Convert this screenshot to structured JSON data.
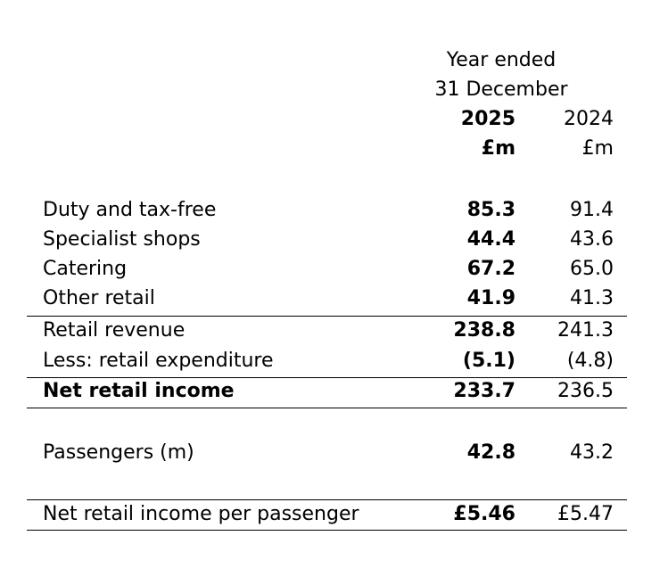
{
  "header": {
    "line1": "Year ended",
    "line2": "31 December",
    "year_current": "2025",
    "year_prior": "2024",
    "unit_current": "£m",
    "unit_prior": "£m"
  },
  "rows": [
    {
      "label": "Duty and tax-free",
      "current": "85.3",
      "prior": "91.4"
    },
    {
      "label": "Specialist shops",
      "current": "44.4",
      "prior": "43.6"
    },
    {
      "label": "Catering",
      "current": "67.2",
      "prior": "65.0"
    },
    {
      "label": "Other retail",
      "current": "41.9",
      "prior": "41.3"
    },
    {
      "label": "Retail revenue",
      "current": "238.8",
      "prior": "241.3"
    },
    {
      "label": "Less: retail expenditure",
      "current": "(5.1)",
      "prior": "(4.8)"
    },
    {
      "label": "Net retail income",
      "current": "233.7",
      "prior": "236.5"
    },
    {
      "label": "Passengers (m)",
      "current": "42.8",
      "prior": "43.2"
    },
    {
      "label": "Net retail income per passenger",
      "current": "£5.46",
      "prior": "£5.47"
    }
  ]
}
